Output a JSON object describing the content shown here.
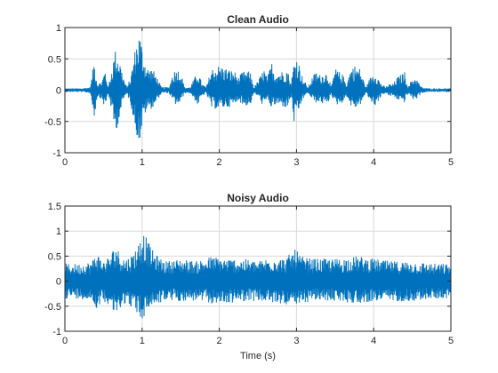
{
  "chart_data": [
    {
      "type": "line",
      "title": "Clean Audio",
      "xlabel": "",
      "ylabel": "",
      "xlim": [
        0,
        5
      ],
      "ylim": [
        -1,
        1
      ],
      "xticks": [
        0,
        1,
        2,
        3,
        4,
        5
      ],
      "yticks": [
        -1,
        -0.5,
        0,
        0.5,
        1
      ],
      "grid": true,
      "color": "#0072bd",
      "envelope": {
        "t": [
          0,
          0.2,
          0.33,
          0.38,
          0.42,
          0.48,
          0.52,
          0.56,
          0.6,
          0.65,
          0.7,
          0.75,
          0.8,
          0.85,
          0.92,
          0.97,
          1.0,
          1.03,
          1.08,
          1.13,
          1.18,
          1.25,
          1.35,
          1.4,
          1.45,
          1.5,
          1.55,
          1.62,
          1.68,
          1.72,
          1.78,
          1.83,
          1.9,
          2.0,
          2.1,
          2.2,
          2.25,
          2.3,
          2.4,
          2.45,
          2.5,
          2.58,
          2.62,
          2.68,
          2.72,
          2.8,
          2.88,
          2.93,
          2.97,
          3.0,
          3.03,
          3.08,
          3.15,
          3.2,
          3.25,
          3.3,
          3.4,
          3.45,
          3.5,
          3.6,
          3.65,
          3.7,
          3.75,
          3.82,
          3.9,
          3.97,
          4.02,
          4.1,
          4.15,
          4.2,
          4.25,
          4.3,
          4.4,
          4.45,
          4.5,
          4.55,
          4.62,
          4.7,
          4.8,
          5.0
        ],
        "pos": [
          0.03,
          0.03,
          0.05,
          0.5,
          0.1,
          0.15,
          0.35,
          0.05,
          0.3,
          0.65,
          0.55,
          0.25,
          0.05,
          0.2,
          0.75,
          0.95,
          0.7,
          0.5,
          0.35,
          0.35,
          0.25,
          0.05,
          0.05,
          0.3,
          0.35,
          0.3,
          0.05,
          0.05,
          0.2,
          0.3,
          0.1,
          0.05,
          0.35,
          0.4,
          0.35,
          0.3,
          0.2,
          0.3,
          0.3,
          0.05,
          0.15,
          0.35,
          0.2,
          0.45,
          0.3,
          0.3,
          0.35,
          0.1,
          0.5,
          0.55,
          0.45,
          0.2,
          0.05,
          0.2,
          0.3,
          0.25,
          0.3,
          0.05,
          0.35,
          0.25,
          0.1,
          0.35,
          0.4,
          0.35,
          0.05,
          0.25,
          0.3,
          0.1,
          0.05,
          0.1,
          0.1,
          0.2,
          0.3,
          0.05,
          0.2,
          0.2,
          0.05,
          0.03,
          0.03,
          0.03
        ],
        "neg": [
          0.03,
          0.03,
          0.05,
          0.45,
          0.1,
          0.15,
          0.3,
          0.05,
          0.3,
          0.7,
          0.5,
          0.2,
          0.05,
          0.2,
          0.7,
          0.85,
          0.6,
          0.4,
          0.3,
          0.3,
          0.2,
          0.05,
          0.05,
          0.2,
          0.25,
          0.2,
          0.05,
          0.05,
          0.15,
          0.25,
          0.1,
          0.05,
          0.3,
          0.3,
          0.28,
          0.25,
          0.15,
          0.25,
          0.25,
          0.05,
          0.1,
          0.28,
          0.15,
          0.3,
          0.25,
          0.25,
          0.3,
          0.1,
          0.55,
          0.5,
          0.35,
          0.15,
          0.05,
          0.15,
          0.2,
          0.2,
          0.25,
          0.05,
          0.25,
          0.2,
          0.1,
          0.25,
          0.3,
          0.25,
          0.05,
          0.2,
          0.25,
          0.1,
          0.05,
          0.1,
          0.1,
          0.15,
          0.2,
          0.05,
          0.15,
          0.15,
          0.05,
          0.03,
          0.03,
          0.03
        ]
      }
    },
    {
      "type": "line",
      "title": "Noisy Audio",
      "xlabel": "Time (s)",
      "ylabel": "",
      "xlim": [
        0,
        5
      ],
      "ylim": [
        -1,
        1.5
      ],
      "xticks": [
        0,
        1,
        2,
        3,
        4,
        5
      ],
      "yticks": [
        -1,
        -0.5,
        0,
        0.5,
        1,
        1.5
      ],
      "grid": true,
      "color": "#0072bd",
      "envelope": {
        "t": [
          0,
          0.2,
          0.35,
          0.4,
          0.5,
          0.6,
          0.65,
          0.7,
          0.78,
          0.85,
          0.95,
          1.0,
          1.05,
          1.12,
          1.2,
          1.3,
          1.5,
          1.7,
          1.9,
          2.1,
          2.3,
          2.5,
          2.7,
          2.85,
          2.95,
          3.0,
          3.05,
          3.2,
          3.5,
          3.8,
          4.0,
          4.2,
          4.5,
          4.8,
          5.0
        ],
        "pos": [
          0.35,
          0.35,
          0.4,
          0.6,
          0.4,
          0.55,
          0.75,
          0.6,
          0.45,
          0.5,
          0.75,
          1.05,
          0.9,
          0.65,
          0.5,
          0.4,
          0.45,
          0.4,
          0.5,
          0.45,
          0.45,
          0.4,
          0.5,
          0.45,
          0.6,
          0.65,
          0.5,
          0.45,
          0.45,
          0.5,
          0.45,
          0.4,
          0.4,
          0.35,
          0.35
        ],
        "neg": [
          0.35,
          0.35,
          0.4,
          0.55,
          0.4,
          0.5,
          0.8,
          0.55,
          0.45,
          0.5,
          0.7,
          0.8,
          0.65,
          0.5,
          0.45,
          0.4,
          0.4,
          0.4,
          0.45,
          0.45,
          0.4,
          0.4,
          0.45,
          0.45,
          0.55,
          0.6,
          0.45,
          0.4,
          0.4,
          0.45,
          0.4,
          0.4,
          0.4,
          0.35,
          0.35
        ]
      }
    }
  ]
}
